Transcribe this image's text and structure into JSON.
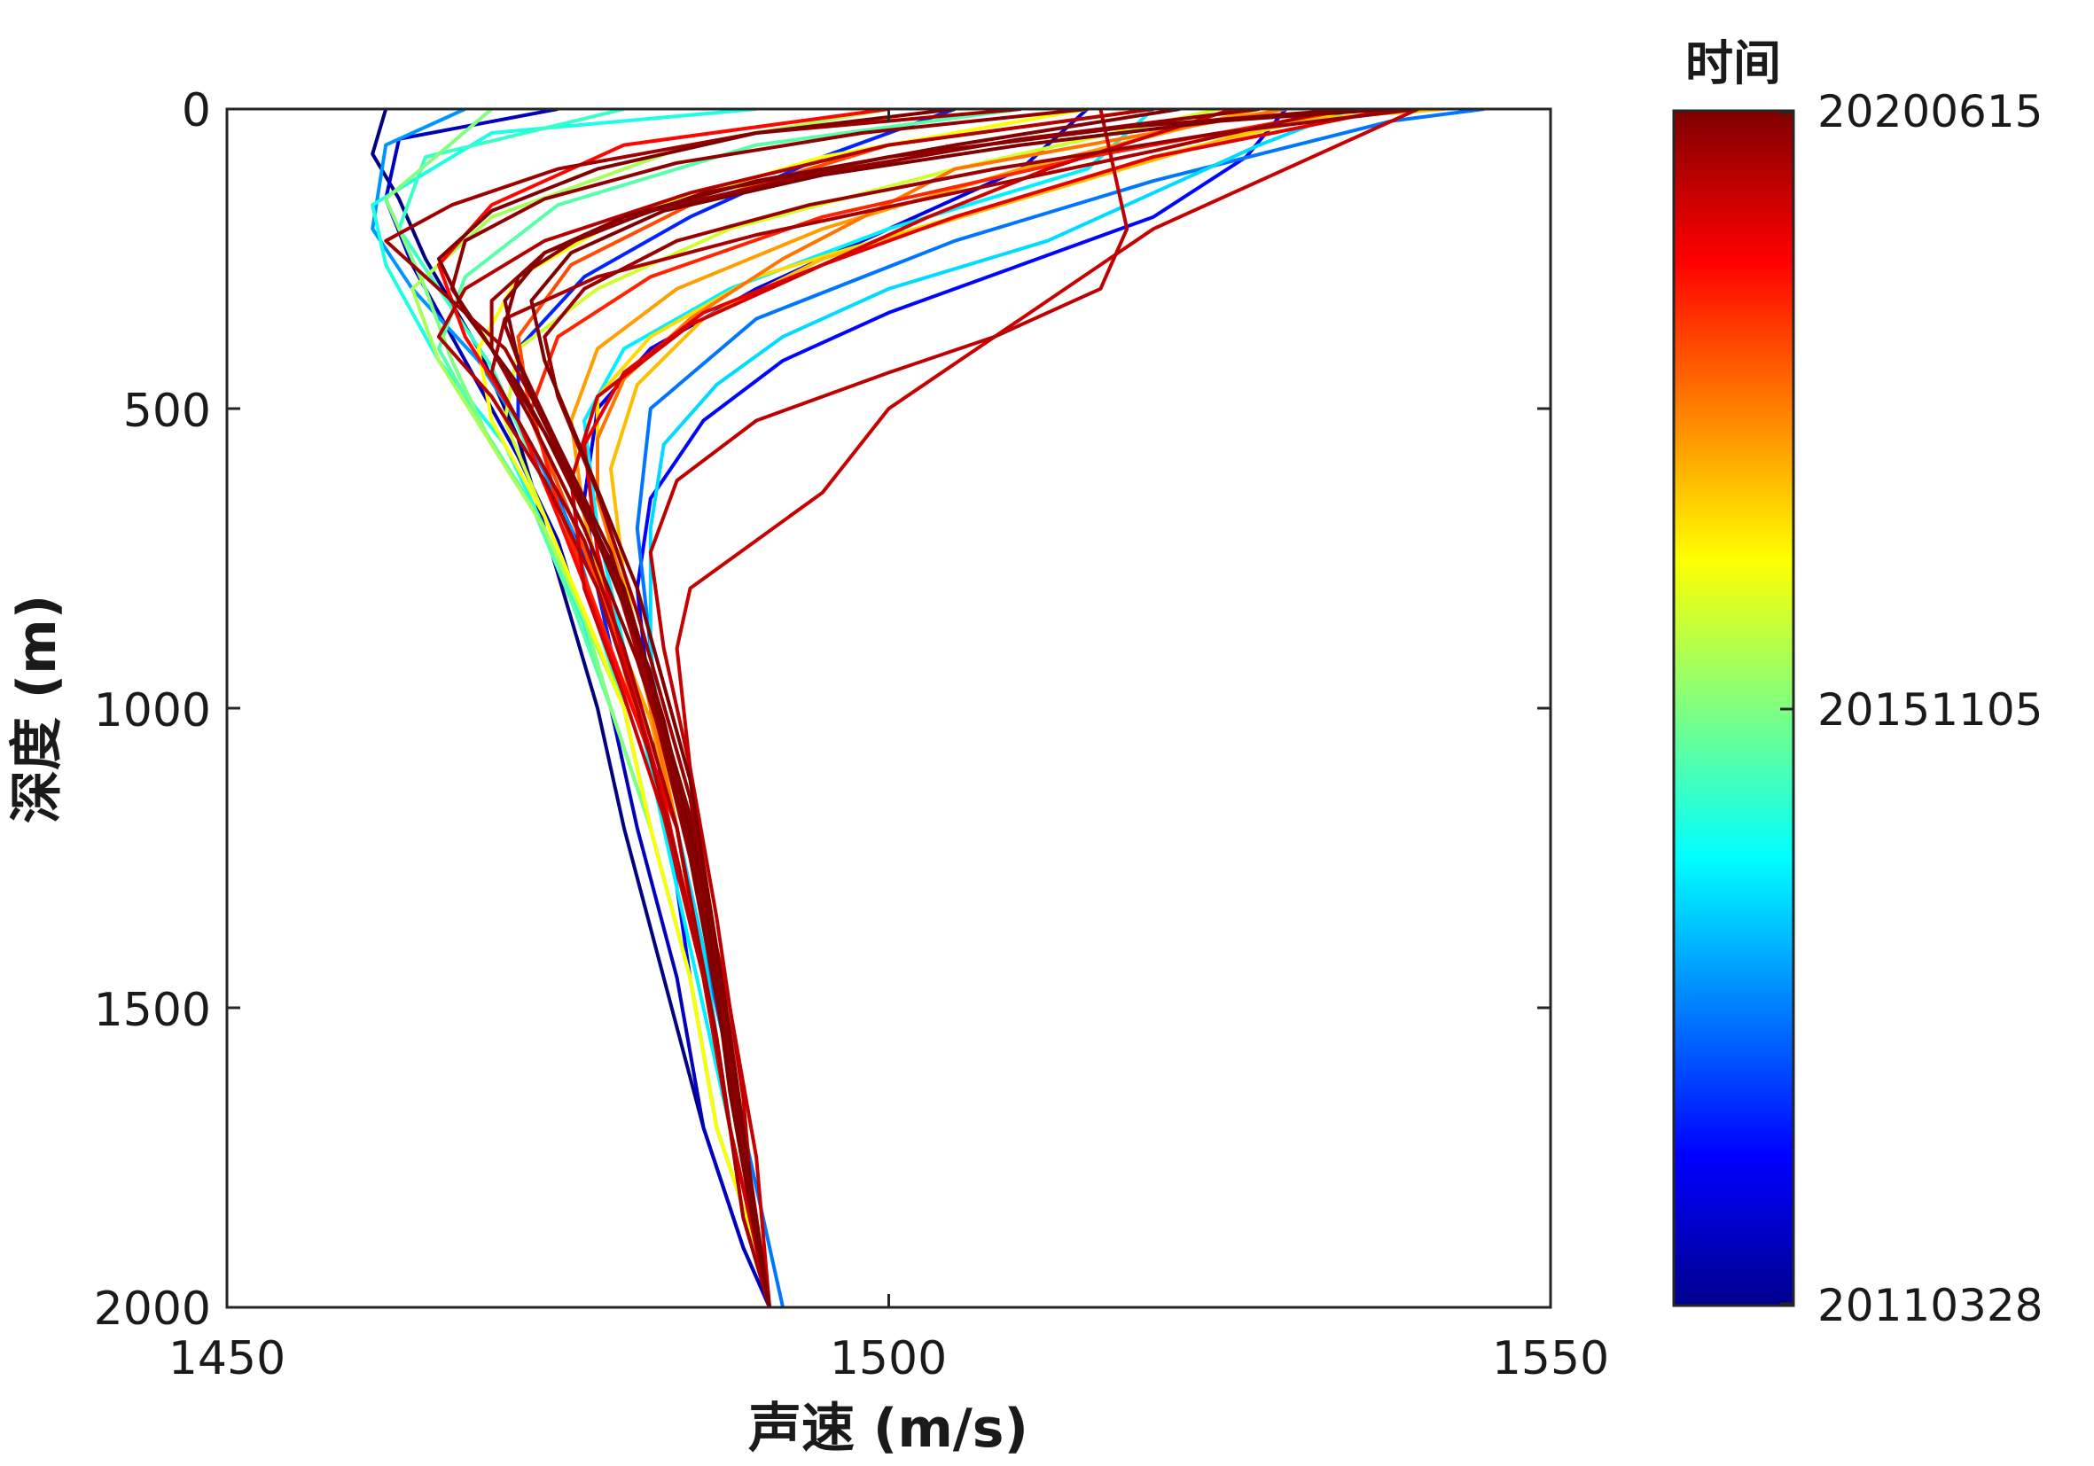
{
  "chart_data": {
    "type": "line",
    "title": "",
    "xlabel": "声速 (m/s)",
    "ylabel": "深度 (m)",
    "xlim": [
      1450,
      1550
    ],
    "ylim": [
      0,
      2000
    ],
    "y_reversed": true,
    "x_ticks": [
      "1450",
      "1500",
      "1550"
    ],
    "y_ticks": [
      "0",
      "500",
      "1000",
      "1500",
      "2000"
    ],
    "grid": false,
    "colormap": "jet",
    "colorbar": {
      "title": "时间",
      "ticks": [
        "20200615",
        "20151105",
        "20110328"
      ],
      "location": "right"
    },
    "series": [
      {
        "t": 0.0,
        "x": [
          1462,
          1461,
          1463,
          1465,
          1469,
          1472,
          1474,
          1476,
          1478,
          1480,
          1483,
          1486,
          1489,
          1491
        ],
        "y": [
          0,
          75,
          150,
          250,
          400,
          550,
          700,
          850,
          1000,
          1200,
          1450,
          1700,
          1900,
          2000
        ]
      },
      {
        "t": 0.06,
        "x": [
          1475,
          1463,
          1462,
          1464,
          1468,
          1472,
          1475,
          1477,
          1479,
          1481,
          1484,
          1486,
          1489,
          1491
        ],
        "y": [
          0,
          50,
          150,
          260,
          420,
          580,
          720,
          860,
          1000,
          1200,
          1450,
          1700,
          1900,
          2000
        ]
      },
      {
        "t": 0.1,
        "x": [
          1515,
          1510,
          1500,
          1490,
          1482,
          1478,
          1477,
          1478,
          1480,
          1482,
          1485,
          1487,
          1490,
          1491
        ],
        "y": [
          0,
          100,
          200,
          300,
          400,
          500,
          650,
          800,
          1000,
          1200,
          1450,
          1700,
          1900,
          2000
        ]
      },
      {
        "t": 0.13,
        "x": [
          1530,
          1527,
          1520,
          1510,
          1500,
          1492,
          1486,
          1482,
          1481,
          1482,
          1485,
          1487,
          1490,
          1491
        ],
        "y": [
          0,
          80,
          180,
          260,
          340,
          420,
          520,
          650,
          800,
          1000,
          1450,
          1700,
          1900,
          2000
        ]
      },
      {
        "t": 0.16,
        "x": [
          1505,
          1495,
          1485,
          1477,
          1472,
          1472,
          1475,
          1478,
          1480,
          1482,
          1485,
          1487,
          1490,
          1491
        ],
        "y": [
          0,
          80,
          180,
          280,
          400,
          520,
          650,
          800,
          1000,
          1200,
          1450,
          1700,
          1900,
          2000
        ]
      },
      {
        "t": 0.24,
        "x": [
          1545,
          1538,
          1520,
          1505,
          1490,
          1482,
          1481,
          1482,
          1483,
          1485,
          1487,
          1489,
          1491,
          1492
        ],
        "y": [
          0,
          20,
          120,
          220,
          350,
          500,
          700,
          900,
          1100,
          1300,
          1500,
          1700,
          1900,
          2000
        ]
      },
      {
        "t": 0.27,
        "x": [
          1468,
          1462,
          1461,
          1464,
          1469,
          1473,
          1476,
          1478,
          1480,
          1482,
          1485,
          1487,
          1490,
          1491
        ],
        "y": [
          0,
          60,
          200,
          300,
          420,
          560,
          700,
          850,
          1000,
          1200,
          1450,
          1700,
          1900,
          2000
        ]
      },
      {
        "t": 0.34,
        "x": [
          1535,
          1528,
          1512,
          1500,
          1492,
          1487,
          1483,
          1482,
          1482,
          1483,
          1486,
          1488,
          1490,
          1491
        ],
        "y": [
          0,
          60,
          220,
          300,
          380,
          460,
          560,
          700,
          900,
          1100,
          1400,
          1700,
          1900,
          2000
        ]
      },
      {
        "t": 0.36,
        "x": [
          1520,
          1515,
          1500,
          1488,
          1480,
          1477,
          1478,
          1480,
          1482,
          1484,
          1486,
          1488,
          1490,
          1491
        ],
        "y": [
          0,
          100,
          200,
          300,
          400,
          520,
          700,
          900,
          1100,
          1300,
          1500,
          1700,
          1900,
          2000
        ]
      },
      {
        "t": 0.4,
        "x": [
          1490,
          1470,
          1461,
          1462,
          1466,
          1471,
          1474,
          1477,
          1479,
          1482,
          1485,
          1487,
          1490,
          1491
        ],
        "y": [
          0,
          40,
          160,
          260,
          420,
          560,
          700,
          860,
          1000,
          1200,
          1450,
          1700,
          1900,
          2000
        ]
      },
      {
        "t": 0.43,
        "x": [
          1480,
          1465,
          1463,
          1466,
          1470,
          1473,
          1476,
          1478,
          1480,
          1482,
          1485,
          1487,
          1490,
          1491
        ],
        "y": [
          0,
          80,
          200,
          300,
          430,
          580,
          720,
          860,
          1000,
          1200,
          1450,
          1700,
          1900,
          2000
        ]
      },
      {
        "t": 0.46,
        "x": [
          1510,
          1490,
          1475,
          1468,
          1466,
          1469,
          1473,
          1476,
          1479,
          1482,
          1485,
          1487,
          1490,
          1491
        ],
        "y": [
          0,
          60,
          160,
          280,
          400,
          520,
          660,
          820,
          1000,
          1200,
          1450,
          1700,
          1900,
          2000
        ]
      },
      {
        "t": 0.5,
        "x": [
          1470,
          1462,
          1465,
          1467,
          1470,
          1474,
          1477,
          1479,
          1482,
          1485,
          1487,
          1490,
          1491
        ],
        "y": [
          0,
          150,
          300,
          420,
          560,
          700,
          850,
          1000,
          1200,
          1450,
          1700,
          1900,
          2000
        ]
      },
      {
        "t": 0.54,
        "x": [
          1500,
          1485,
          1470,
          1464,
          1466,
          1470,
          1474,
          1477,
          1480,
          1482,
          1485,
          1487,
          1490,
          1491
        ],
        "y": [
          0,
          60,
          180,
          300,
          420,
          560,
          700,
          850,
          1000,
          1200,
          1450,
          1700,
          1900,
          2000
        ]
      },
      {
        "t": 0.58,
        "x": [
          1525,
          1505,
          1488,
          1478,
          1472,
          1471,
          1474,
          1477,
          1480,
          1482,
          1485,
          1487,
          1490,
          1491
        ],
        "y": [
          0,
          100,
          200,
          300,
          400,
          520,
          680,
          840,
          1000,
          1200,
          1450,
          1700,
          1900,
          2000
        ]
      },
      {
        "t": 0.62,
        "x": [
          1515,
          1495,
          1480,
          1472,
          1469,
          1470,
          1474,
          1477,
          1480,
          1482,
          1485,
          1487,
          1490,
          1491
        ],
        "y": [
          0,
          80,
          180,
          280,
          400,
          520,
          680,
          840,
          1000,
          1200,
          1450,
          1700,
          1900,
          2000
        ]
      },
      {
        "t": 0.66,
        "x": [
          1535,
          1520,
          1505,
          1490,
          1482,
          1478,
          1478,
          1480,
          1482,
          1484,
          1486,
          1488,
          1490,
          1491
        ],
        "y": [
          0,
          80,
          180,
          280,
          380,
          480,
          640,
          820,
          1000,
          1200,
          1450,
          1700,
          1900,
          2000
        ]
      },
      {
        "t": 0.69,
        "x": [
          1542,
          1530,
          1510,
          1495,
          1486,
          1481,
          1479,
          1480,
          1482,
          1484,
          1486,
          1488,
          1490,
          1491
        ],
        "y": [
          0,
          20,
          150,
          250,
          350,
          460,
          600,
          780,
          980,
          1200,
          1450,
          1700,
          1900,
          2000
        ]
      },
      {
        "t": 0.72,
        "x": [
          1528,
          1510,
          1495,
          1484,
          1478,
          1476,
          1477,
          1479,
          1482,
          1484,
          1486,
          1488,
          1490,
          1491
        ],
        "y": [
          0,
          100,
          200,
          300,
          400,
          520,
          680,
          850,
          1020,
          1200,
          1450,
          1700,
          1900,
          2000
        ]
      },
      {
        "t": 0.76,
        "x": [
          1530,
          1505,
          1492,
          1485,
          1480,
          1478,
          1478,
          1480,
          1482,
          1484,
          1486,
          1488,
          1490,
          1491
        ],
        "y": [
          0,
          100,
          250,
          350,
          450,
          550,
          650,
          800,
          1000,
          1200,
          1450,
          1700,
          1900,
          2000
        ]
      },
      {
        "t": 0.8,
        "x": [
          1520,
          1500,
          1485,
          1476,
          1472,
          1473,
          1476,
          1479,
          1481,
          1484,
          1486,
          1488,
          1490,
          1491
        ],
        "y": [
          0,
          60,
          160,
          260,
          380,
          520,
          680,
          850,
          1020,
          1200,
          1450,
          1700,
          1900,
          2000
        ]
      },
      {
        "t": 0.84,
        "x": [
          1535,
          1515,
          1495,
          1482,
          1475,
          1473,
          1475,
          1478,
          1481,
          1484,
          1486,
          1488,
          1490,
          1491
        ],
        "y": [
          0,
          80,
          180,
          280,
          380,
          500,
          660,
          840,
          1020,
          1200,
          1450,
          1700,
          1900,
          2000
        ]
      },
      {
        "t": 0.87,
        "x": [
          1500,
          1480,
          1470,
          1466,
          1468,
          1472,
          1475,
          1478,
          1481,
          1484,
          1486,
          1488,
          1490,
          1491
        ],
        "y": [
          0,
          60,
          160,
          260,
          380,
          520,
          680,
          850,
          1020,
          1200,
          1450,
          1700,
          1900,
          2000
        ]
      },
      {
        "t": 0.9,
        "x": [
          1538,
          1520,
          1505,
          1495,
          1486,
          1480,
          1477,
          1478,
          1480,
          1483,
          1486,
          1488,
          1490,
          1491
        ],
        "y": [
          0,
          80,
          180,
          260,
          340,
          440,
          560,
          740,
          920,
          1150,
          1450,
          1700,
          1900,
          2000
        ]
      },
      {
        "t": 0.92,
        "x": [
          1526,
          1512,
          1503,
          1495,
          1485,
          1478,
          1476,
          1477,
          1480,
          1483,
          1486,
          1488,
          1490,
          1491
        ],
        "y": [
          0,
          100,
          180,
          260,
          360,
          480,
          620,
          800,
          980,
          1180,
          1450,
          1700,
          1900,
          2000
        ]
      },
      {
        "t": 0.93,
        "x": [
          1540,
          1520,
          1510,
          1500,
          1495,
          1490,
          1485,
          1484,
          1485,
          1486,
          1488,
          1490,
          1491
        ],
        "y": [
          0,
          200,
          350,
          500,
          640,
          720,
          800,
          900,
          1100,
          1300,
          1500,
          1750,
          2000
        ]
      },
      {
        "t": 0.94,
        "x": [
          1516,
          1518,
          1516,
          1508,
          1500,
          1490,
          1484,
          1482,
          1483,
          1485,
          1487,
          1489,
          1490,
          1491
        ],
        "y": [
          0,
          200,
          300,
          380,
          440,
          520,
          620,
          740,
          900,
          1100,
          1350,
          1650,
          1900,
          2000
        ]
      },
      {
        "t": 0.95,
        "x": [
          1520,
          1500,
          1485,
          1474,
          1468,
          1466,
          1470,
          1474,
          1478,
          1481,
          1484,
          1487,
          1489,
          1491
        ],
        "y": [
          0,
          60,
          140,
          220,
          300,
          380,
          480,
          620,
          800,
          1000,
          1250,
          1550,
          1850,
          2000
        ]
      },
      {
        "t": 0.96,
        "x": [
          1534,
          1520,
          1505,
          1490,
          1478,
          1471,
          1470,
          1473,
          1477,
          1480,
          1484,
          1487,
          1489,
          1491
        ],
        "y": [
          0,
          70,
          140,
          210,
          280,
          350,
          440,
          560,
          720,
          900,
          1200,
          1550,
          1850,
          2000
        ]
      },
      {
        "t": 0.97,
        "x": [
          1510,
          1490,
          1475,
          1467,
          1462,
          1466,
          1471,
          1475,
          1479,
          1482,
          1485,
          1488,
          1490,
          1491
        ],
        "y": [
          0,
          40,
          100,
          160,
          220,
          300,
          400,
          560,
          760,
          980,
          1250,
          1600,
          1880,
          2000
        ]
      },
      {
        "t": 0.975,
        "x": [
          1540,
          1525,
          1508,
          1494,
          1484,
          1477,
          1474,
          1475,
          1478,
          1481,
          1485,
          1488,
          1490,
          1491
        ],
        "y": [
          0,
          40,
          100,
          160,
          220,
          300,
          380,
          480,
          640,
          840,
          1150,
          1550,
          1850,
          2000
        ]
      },
      {
        "t": 0.98,
        "x": [
          1528,
          1510,
          1494,
          1482,
          1474,
          1470,
          1470,
          1473,
          1477,
          1481,
          1485,
          1488,
          1490,
          1491
        ],
        "y": [
          0,
          50,
          110,
          170,
          240,
          320,
          400,
          520,
          700,
          920,
          1200,
          1580,
          1870,
          2000
        ]
      },
      {
        "t": 0.985,
        "x": [
          1515,
          1498,
          1484,
          1474,
          1468,
          1467,
          1470,
          1474,
          1478,
          1482,
          1485,
          1488,
          1490,
          1491
        ],
        "y": [
          0,
          40,
          90,
          150,
          220,
          300,
          400,
          540,
          720,
          940,
          1220,
          1600,
          1880,
          2000
        ]
      },
      {
        "t": 0.99,
        "x": [
          1535,
          1518,
          1500,
          1486,
          1477,
          1472,
          1471,
          1473,
          1477,
          1481,
          1485,
          1488,
          1490,
          1491
        ],
        "y": [
          0,
          30,
          80,
          140,
          210,
          280,
          360,
          480,
          660,
          880,
          1180,
          1560,
          1860,
          2000
        ]
      },
      {
        "t": 0.995,
        "x": [
          1522,
          1505,
          1490,
          1480,
          1474,
          1471,
          1472,
          1475,
          1479,
          1482,
          1485,
          1488,
          1490,
          1491
        ],
        "y": [
          0,
          60,
          120,
          180,
          240,
          320,
          420,
          560,
          740,
          960,
          1240,
          1610,
          1880,
          2000
        ]
      },
      {
        "t": 1.0,
        "x": [
          1538,
          1525,
          1510,
          1495,
          1483,
          1476,
          1473,
          1474,
          1477,
          1481,
          1485,
          1488,
          1490,
          1491
        ],
        "y": [
          0,
          20,
          60,
          110,
          170,
          240,
          320,
          420,
          580,
          800,
          1120,
          1540,
          1860,
          2000
        ]
      },
      {
        "t": 1.0,
        "x": [
          1505,
          1490,
          1478,
          1470,
          1466,
          1468,
          1472,
          1476,
          1480,
          1483,
          1486,
          1488,
          1490,
          1491
        ],
        "y": [
          0,
          40,
          100,
          170,
          250,
          340,
          460,
          620,
          800,
          1020,
          1300,
          1640,
          1890,
          2000
        ]
      }
    ]
  }
}
